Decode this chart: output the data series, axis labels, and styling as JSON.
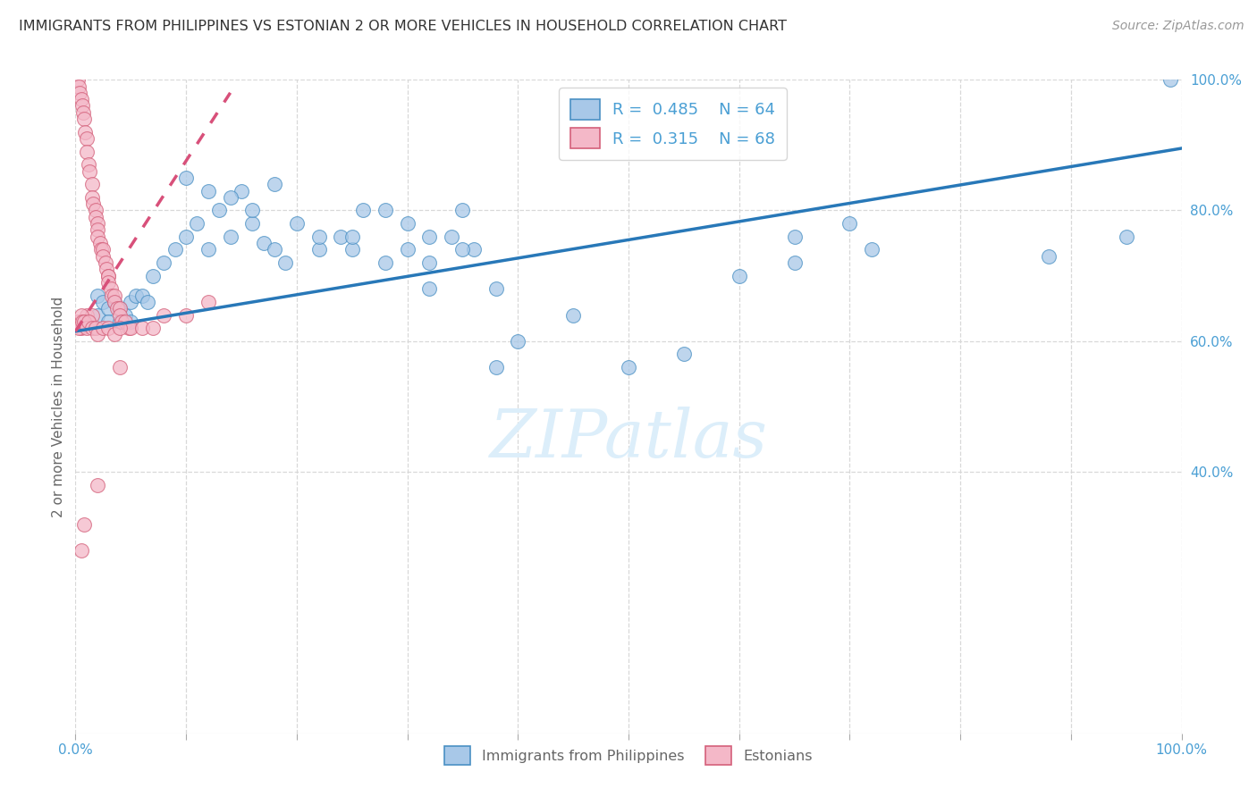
{
  "title": "IMMIGRANTS FROM PHILIPPINES VS ESTONIAN 2 OR MORE VEHICLES IN HOUSEHOLD CORRELATION CHART",
  "source": "Source: ZipAtlas.com",
  "ylabel": "2 or more Vehicles in Household",
  "watermark": "ZIPatlas",
  "legend_blue_r": "0.485",
  "legend_blue_n": "64",
  "legend_pink_r": "0.315",
  "legend_pink_n": "68",
  "legend_blue_label": "Immigrants from Philippines",
  "legend_pink_label": "Estonians",
  "blue_color": "#a8c8e8",
  "blue_edge_color": "#4a90c4",
  "pink_color": "#f4b8c8",
  "pink_edge_color": "#d4607a",
  "blue_line_color": "#2878b8",
  "pink_line_color": "#d8507a",
  "tick_label_color": "#4a9fd4",
  "axis_label_color": "#666666",
  "grid_color": "#d8d8d8",
  "background_color": "#ffffff",
  "title_color": "#333333",
  "source_color": "#999999",
  "watermark_color": "#dceefa",
  "xlim": [
    0.0,
    1.0
  ],
  "ylim": [
    0.0,
    1.0
  ],
  "right_ytick_positions": [
    0.4,
    0.6,
    0.8,
    1.0
  ],
  "right_ytick_labels": [
    "40.0%",
    "60.0%",
    "80.0%",
    "100.0%"
  ],
  "xtick_positions": [
    0.0,
    1.0
  ],
  "xtick_labels": [
    "0.0%",
    "100.0%"
  ],
  "blue_line_x0": 0.0,
  "blue_line_y0": 0.615,
  "blue_line_x1": 1.0,
  "blue_line_y1": 0.895,
  "pink_line_x0": 0.0,
  "pink_line_y0": 0.615,
  "pink_line_x1": 0.14,
  "pink_line_y1": 0.98,
  "blue_scatter_x": [
    0.02,
    0.02,
    0.025,
    0.03,
    0.03,
    0.035,
    0.04,
    0.04,
    0.045,
    0.05,
    0.05,
    0.055,
    0.06,
    0.065,
    0.07,
    0.08,
    0.09,
    0.1,
    0.11,
    0.12,
    0.13,
    0.14,
    0.15,
    0.16,
    0.17,
    0.18,
    0.19,
    0.2,
    0.22,
    0.24,
    0.25,
    0.26,
    0.28,
    0.3,
    0.3,
    0.32,
    0.34,
    0.35,
    0.36,
    0.38,
    0.1,
    0.12,
    0.14,
    0.16,
    0.18,
    0.22,
    0.25,
    0.28,
    0.32,
    0.35,
    0.38,
    0.4,
    0.45,
    0.5,
    0.55,
    0.6,
    0.65,
    0.7,
    0.32,
    0.65,
    0.72,
    0.88,
    0.95,
    0.99
  ],
  "blue_scatter_y": [
    0.64,
    0.67,
    0.66,
    0.65,
    0.63,
    0.66,
    0.65,
    0.63,
    0.64,
    0.66,
    0.63,
    0.67,
    0.67,
    0.66,
    0.7,
    0.72,
    0.74,
    0.76,
    0.78,
    0.74,
    0.8,
    0.76,
    0.83,
    0.78,
    0.75,
    0.74,
    0.72,
    0.78,
    0.74,
    0.76,
    0.74,
    0.8,
    0.72,
    0.74,
    0.78,
    0.72,
    0.76,
    0.8,
    0.74,
    0.68,
    0.85,
    0.83,
    0.82,
    0.8,
    0.84,
    0.76,
    0.76,
    0.8,
    0.76,
    0.74,
    0.56,
    0.6,
    0.64,
    0.56,
    0.58,
    0.7,
    0.76,
    0.78,
    0.68,
    0.72,
    0.74,
    0.73,
    0.76,
    1.0
  ],
  "pink_scatter_x": [
    0.002,
    0.003,
    0.004,
    0.005,
    0.006,
    0.007,
    0.008,
    0.009,
    0.01,
    0.01,
    0.012,
    0.013,
    0.015,
    0.015,
    0.016,
    0.018,
    0.018,
    0.02,
    0.02,
    0.02,
    0.022,
    0.023,
    0.025,
    0.025,
    0.027,
    0.028,
    0.03,
    0.03,
    0.03,
    0.032,
    0.033,
    0.035,
    0.035,
    0.038,
    0.04,
    0.04,
    0.042,
    0.045,
    0.048,
    0.05,
    0.005,
    0.008,
    0.01,
    0.012,
    0.015,
    0.002,
    0.003,
    0.005,
    0.006,
    0.008,
    0.01,
    0.012,
    0.015,
    0.018,
    0.02,
    0.025,
    0.03,
    0.035,
    0.04,
    0.06,
    0.07,
    0.08,
    0.1,
    0.12,
    0.02,
    0.04,
    0.005,
    0.008
  ],
  "pink_scatter_y": [
    1.0,
    0.99,
    0.98,
    0.97,
    0.96,
    0.95,
    0.94,
    0.92,
    0.91,
    0.89,
    0.87,
    0.86,
    0.84,
    0.82,
    0.81,
    0.8,
    0.79,
    0.78,
    0.77,
    0.76,
    0.75,
    0.74,
    0.74,
    0.73,
    0.72,
    0.71,
    0.7,
    0.7,
    0.69,
    0.68,
    0.67,
    0.67,
    0.66,
    0.65,
    0.65,
    0.64,
    0.63,
    0.63,
    0.62,
    0.62,
    0.62,
    0.63,
    0.64,
    0.63,
    0.64,
    0.63,
    0.62,
    0.64,
    0.63,
    0.63,
    0.62,
    0.63,
    0.62,
    0.62,
    0.61,
    0.62,
    0.62,
    0.61,
    0.62,
    0.62,
    0.62,
    0.64,
    0.64,
    0.66,
    0.38,
    0.56,
    0.28,
    0.32
  ]
}
